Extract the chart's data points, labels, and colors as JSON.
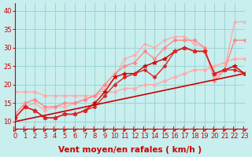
{
  "xlabel": "Vent moyen/en rafales ( km/h )",
  "xlim": [
    0,
    23
  ],
  "ylim": [
    8,
    42
  ],
  "yticks": [
    10,
    15,
    20,
    25,
    30,
    35,
    40
  ],
  "xticks": [
    0,
    1,
    2,
    3,
    4,
    5,
    6,
    7,
    8,
    9,
    10,
    11,
    12,
    13,
    14,
    15,
    16,
    17,
    18,
    19,
    20,
    21,
    22,
    23
  ],
  "bg_color": "#c8eeee",
  "grid_color": "#9dd4d4",
  "lines": [
    {
      "x": [
        0,
        1,
        2,
        3,
        4,
        5,
        6,
        7,
        8,
        9,
        10,
        11,
        12,
        13,
        14,
        15,
        16,
        17,
        18,
        19,
        20,
        21,
        22,
        23
      ],
      "y": [
        18,
        18,
        18,
        17,
        17,
        17,
        17,
        17,
        17,
        18,
        18,
        19,
        19,
        20,
        20,
        21,
        22,
        23,
        24,
        24,
        25,
        26,
        27,
        27
      ],
      "color": "#ffaaaa",
      "lw": 1.0,
      "marker": "D",
      "ms": 2.5
    },
    {
      "x": [
        0,
        1,
        2,
        3,
        4,
        5,
        6,
        7,
        8,
        9,
        10,
        11,
        12,
        13,
        14,
        15,
        16,
        17,
        18,
        19,
        20,
        21,
        22,
        23
      ],
      "y": [
        11,
        14,
        15,
        13,
        14,
        14,
        15,
        16,
        17,
        19,
        22,
        27,
        28,
        31,
        30,
        32,
        33,
        33,
        31,
        30,
        22,
        24,
        37,
        37
      ],
      "color": "#ffaaaa",
      "lw": 1.0,
      "marker": "o",
      "ms": 2.5
    },
    {
      "x": [
        0,
        1,
        2,
        3,
        4,
        5,
        6,
        7,
        8,
        9,
        10,
        11,
        12,
        13,
        14,
        15,
        16,
        17,
        18,
        19,
        20,
        21,
        22,
        23
      ],
      "y": [
        12,
        15,
        16,
        14,
        14,
        15,
        15,
        16,
        17,
        20,
        23,
        25,
        26,
        29,
        27,
        30,
        32,
        32,
        32,
        30,
        21,
        24,
        32,
        32
      ],
      "color": "#ff8888",
      "lw": 1.0,
      "marker": "D",
      "ms": 2.5
    },
    {
      "x": [
        0,
        1,
        2,
        3,
        4,
        5,
        6,
        7,
        8,
        9,
        10,
        11,
        12,
        13,
        14,
        15,
        16,
        17,
        18,
        19,
        20,
        21,
        22,
        23
      ],
      "y": [
        11,
        14,
        13,
        11,
        11,
        12,
        12,
        13,
        15,
        18,
        22,
        23,
        23,
        25,
        26,
        27,
        29,
        30,
        29,
        29,
        23,
        24,
        25,
        23
      ],
      "color": "#cc0000",
      "lw": 1.0,
      "marker": "*",
      "ms": 4
    },
    {
      "x": [
        0,
        1,
        2,
        3,
        4,
        5,
        6,
        7,
        8,
        9,
        10,
        11,
        12,
        13,
        14,
        15,
        16,
        17,
        18,
        19,
        20,
        21,
        22,
        23
      ],
      "y": [
        11,
        14,
        13,
        11,
        11,
        12,
        12,
        13,
        14,
        17,
        20,
        22,
        23,
        24,
        22,
        25,
        29,
        30,
        29,
        29,
        23,
        24,
        24,
        23
      ],
      "color": "#dd2222",
      "lw": 1.0,
      "marker": "D",
      "ms": 2.5
    },
    {
      "x": [
        0,
        23
      ],
      "y": [
        10,
        23
      ],
      "color": "#cc0000",
      "lw": 1.2,
      "marker": null,
      "ms": 0
    }
  ],
  "arrow_color": "#cc0000",
  "xlabel_color": "#cc0000",
  "xlabel_fontsize": 7.5,
  "tick_fontsize": 6,
  "tick_color": "#cc0000"
}
